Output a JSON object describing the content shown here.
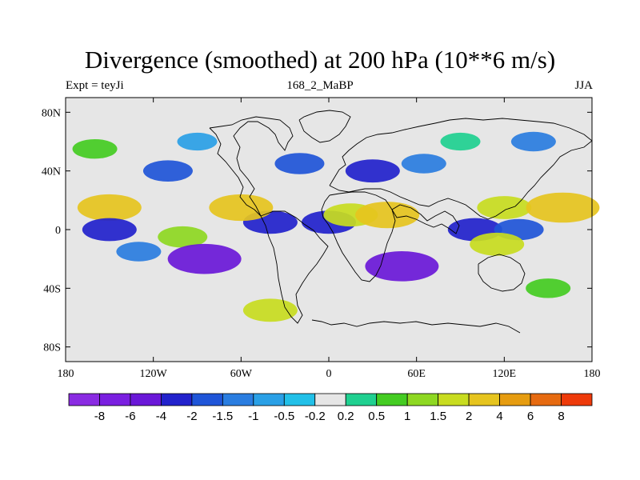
{
  "header": {
    "title": "Divergence (smoothed) at 200 hPa (10**6 m/s)",
    "left_label": "Expt = teyJi",
    "center_label": "168_2_MaBP",
    "right_label": "JJA"
  },
  "colors": {
    "land_outline": "#000000",
    "background": "#ffffff",
    "near_zero": "#e6e6e6"
  },
  "chart_data": {
    "type": "heatmap",
    "title": "Divergence (smoothed) at 200 hPa (10**6 m/s)",
    "xlabel": "",
    "ylabel": "",
    "xlim": [
      -180,
      180
    ],
    "ylim": [
      -90,
      90
    ],
    "x_ticks": [
      {
        "value": -180,
        "label": "180"
      },
      {
        "value": -120,
        "label": "120W"
      },
      {
        "value": -60,
        "label": "60W"
      },
      {
        "value": 0,
        "label": "0"
      },
      {
        "value": 60,
        "label": "60E"
      },
      {
        "value": 120,
        "label": "120E"
      },
      {
        "value": 180,
        "label": "180"
      }
    ],
    "y_ticks": [
      {
        "value": 80,
        "label": "80N"
      },
      {
        "value": 40,
        "label": "40N"
      },
      {
        "value": 0,
        "label": "0"
      },
      {
        "value": -40,
        "label": "40S"
      },
      {
        "value": -80,
        "label": "80S"
      }
    ],
    "colorbar": {
      "labels": [
        "-8",
        "-6",
        "-4",
        "-2",
        "-1.5",
        "-1",
        "-0.5",
        "-0.2",
        "0.2",
        "0.5",
        "1",
        "1.5",
        "2",
        "4",
        "6",
        "8"
      ],
      "colors": [
        "#8a2be2",
        "#7a1fe0",
        "#6a18d8",
        "#2222cc",
        "#1f55d8",
        "#2a7de0",
        "#2aa0e6",
        "#22c0e8",
        "#e6e6e6",
        "#20d090",
        "#44cc22",
        "#8ed822",
        "#c8dc20",
        "#e6c41e",
        "#e69c10",
        "#e66a10",
        "#ee3a0a"
      ]
    },
    "field_features": [
      {
        "lon": -150,
        "lat": 15,
        "value": 3
      },
      {
        "lon": -150,
        "lat": 0,
        "value": -2
      },
      {
        "lon": -100,
        "lat": -5,
        "value": 1.5
      },
      {
        "lon": -85,
        "lat": -20,
        "value": -4
      },
      {
        "lon": -130,
        "lat": -15,
        "value": -1
      },
      {
        "lon": -110,
        "lat": 40,
        "value": -1.5
      },
      {
        "lon": -90,
        "lat": 60,
        "value": -0.5
      },
      {
        "lon": -160,
        "lat": 55,
        "value": 1
      },
      {
        "lon": -40,
        "lat": 5,
        "value": -2
      },
      {
        "lon": -60,
        "lat": 15,
        "value": 3
      },
      {
        "lon": -20,
        "lat": 45,
        "value": -1.5
      },
      {
        "lon": 0,
        "lat": 5,
        "value": -2
      },
      {
        "lon": 15,
        "lat": 10,
        "value": 2
      },
      {
        "lon": 40,
        "lat": 10,
        "value": 3
      },
      {
        "lon": 50,
        "lat": -25,
        "value": -4
      },
      {
        "lon": 30,
        "lat": 40,
        "value": -2
      },
      {
        "lon": 65,
        "lat": 45,
        "value": -1
      },
      {
        "lon": 100,
        "lat": 0,
        "value": -2
      },
      {
        "lon": 120,
        "lat": 15,
        "value": 2
      },
      {
        "lon": 160,
        "lat": 15,
        "value": 4
      },
      {
        "lon": 130,
        "lat": 0,
        "value": -1.5
      },
      {
        "lon": 115,
        "lat": -10,
        "value": 2
      },
      {
        "lon": 150,
        "lat": -40,
        "value": 1
      },
      {
        "lon": -40,
        "lat": -55,
        "value": 2
      },
      {
        "lon": 90,
        "lat": 60,
        "value": 0.5
      },
      {
        "lon": 140,
        "lat": 60,
        "value": -1
      }
    ]
  }
}
